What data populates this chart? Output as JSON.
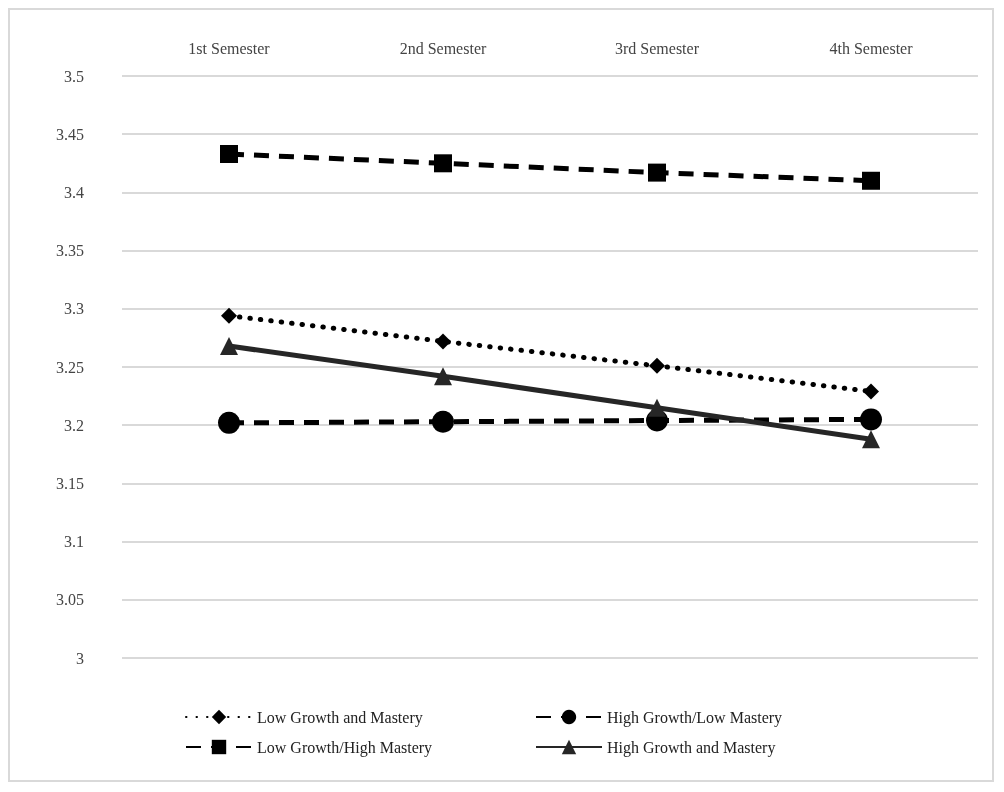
{
  "chart_data": {
    "type": "line",
    "categories": [
      "1st Semester",
      "2nd Semester",
      "3rd Semester",
      "4th Semester"
    ],
    "series": [
      {
        "name": "Low Growth and Mastery",
        "color": "#000000",
        "values": [
          3.294,
          3.272,
          3.251,
          3.229
        ],
        "marker": "diamond",
        "line_style": "dotted"
      },
      {
        "name": "High Growth/Low Mastery",
        "color": "#000000",
        "values": [
          3.202,
          3.203,
          3.204,
          3.205
        ],
        "marker": "circle",
        "line_style": "dashed"
      },
      {
        "name": "Low Growth/High Mastery",
        "color": "#000000",
        "values": [
          3.433,
          3.425,
          3.417,
          3.41
        ],
        "marker": "square",
        "line_style": "dashed"
      },
      {
        "name": "High Growth and Mastery",
        "color": "#262626",
        "values": [
          3.268,
          3.242,
          3.215,
          3.188
        ],
        "marker": "triangle",
        "line_style": "solid"
      }
    ],
    "ylim": [
      3,
      3.5
    ],
    "yticks": [
      3,
      3.05,
      3.1,
      3.15,
      3.2,
      3.25,
      3.3,
      3.35,
      3.4,
      3.45,
      3.5
    ],
    "grid": "y",
    "legend": "bottom"
  }
}
